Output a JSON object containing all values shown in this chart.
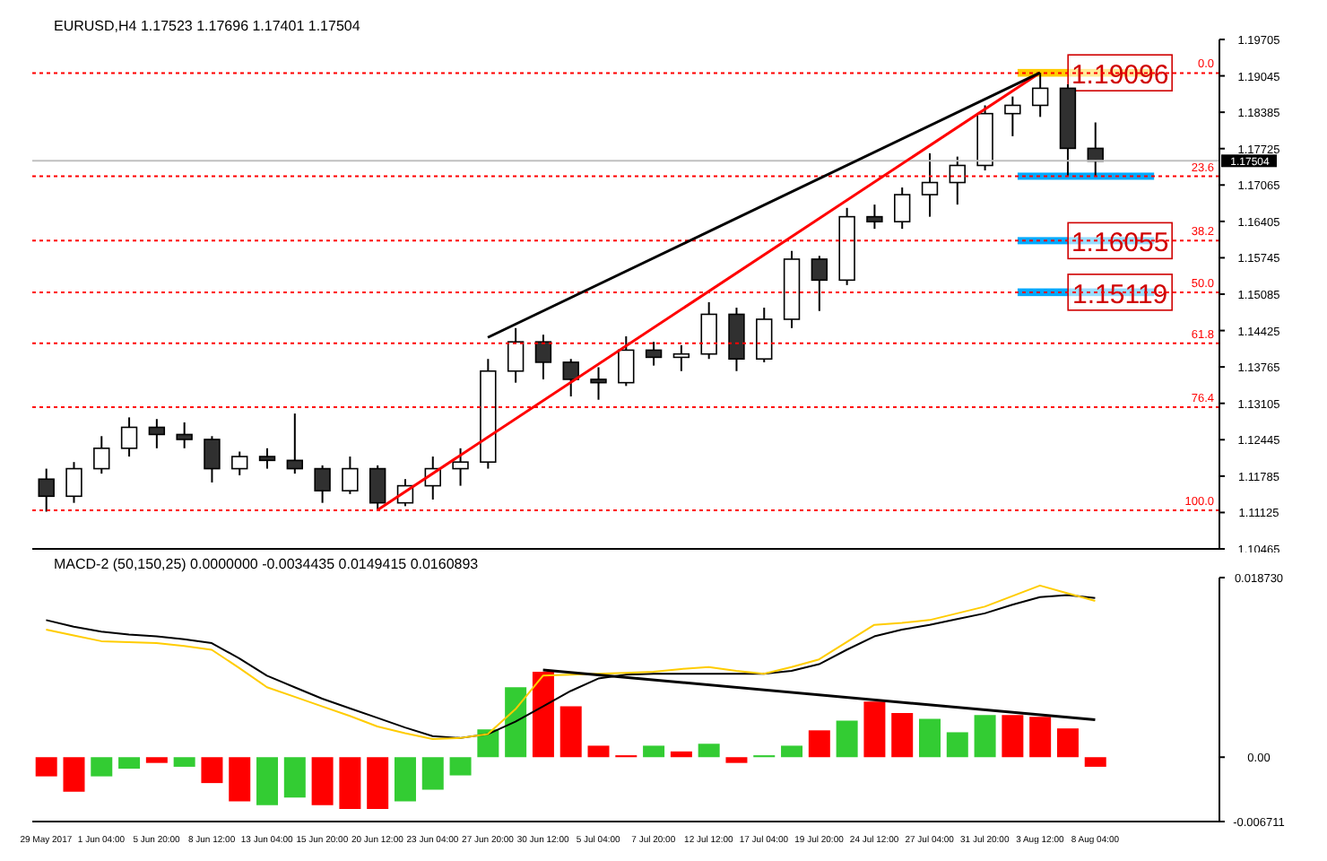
{
  "chart_data": [
    {
      "type": "candlestick",
      "title": "EURUSD,H4 1.17523 1.17696 1.17401 1.17504",
      "categories": [
        "29 May 2017",
        null,
        "1 Jun 04:00",
        null,
        "5 Jun 20:00",
        null,
        "8 Jun 12:00",
        null,
        "13 Jun 04:00",
        null,
        "15 Jun 20:00",
        null,
        "20 Jun 12:00",
        null,
        "23 Jun 04:00",
        null,
        "27 Jun 20:00",
        null,
        "30 Jun 12:00",
        null,
        "5 Jul 04:00",
        null,
        "7 Jul 20:00",
        null,
        "12 Jul 12:00",
        null,
        "17 Jul 04:00",
        null,
        "19 Jul 20:00",
        null,
        "24 Jul 12:00",
        null,
        "27 Jul 04:00",
        null,
        "31 Jul 20:00",
        null,
        "3 Aug 12:00",
        null,
        "8 Aug 04:00",
        null,
        null,
        null,
        null
      ],
      "ohlc": [
        [
          1.1173,
          1.1192,
          1.1114,
          1.1142
        ],
        [
          1.1142,
          1.1204,
          1.113,
          1.1192
        ],
        [
          1.1192,
          1.1251,
          1.1183,
          1.1229
        ],
        [
          1.1229,
          1.1285,
          1.1214,
          1.1267
        ],
        [
          1.1267,
          1.1282,
          1.1229,
          1.1254
        ],
        [
          1.1254,
          1.1276,
          1.1229,
          1.1245
        ],
        [
          1.1245,
          1.1251,
          1.1167,
          1.1192
        ],
        [
          1.1192,
          1.1223,
          1.118,
          1.1214
        ],
        [
          1.1214,
          1.1229,
          1.1192,
          1.1207
        ],
        [
          1.1207,
          1.1292,
          1.1183,
          1.1192
        ],
        [
          1.1192,
          1.1198,
          1.113,
          1.1152
        ],
        [
          1.1152,
          1.1214,
          1.1146,
          1.1192
        ],
        [
          1.1192,
          1.1198,
          1.1117,
          1.113
        ],
        [
          1.113,
          1.1173,
          1.1124,
          1.1161
        ],
        [
          1.1161,
          1.1214,
          1.1136,
          1.1192
        ],
        [
          1.1192,
          1.1229,
          1.1161,
          1.1204
        ],
        [
          1.1204,
          1.1391,
          1.1192,
          1.1369
        ],
        [
          1.1369,
          1.1447,
          1.1348,
          1.1422
        ],
        [
          1.1422,
          1.1435,
          1.1354,
          1.1385
        ],
        [
          1.1385,
          1.1391,
          1.1323,
          1.1354
        ],
        [
          1.1354,
          1.1376,
          1.1317,
          1.1348
        ],
        [
          1.1348,
          1.1432,
          1.1342,
          1.1407
        ],
        [
          1.1407,
          1.1422,
          1.1379,
          1.1394
        ],
        [
          1.1394,
          1.1416,
          1.1369,
          1.14
        ],
        [
          1.14,
          1.1494,
          1.1391,
          1.1472
        ],
        [
          1.1472,
          1.1484,
          1.1369,
          1.1391
        ],
        [
          1.1391,
          1.1484,
          1.1385,
          1.1463
        ],
        [
          1.1463,
          1.1587,
          1.1447,
          1.1572
        ],
        [
          1.1572,
          1.1578,
          1.1478,
          1.1534
        ],
        [
          1.1534,
          1.1665,
          1.1525,
          1.1649
        ],
        [
          1.1649,
          1.1671,
          1.1627,
          1.164
        ],
        [
          1.164,
          1.1702,
          1.1627,
          1.1689
        ],
        [
          1.1689,
          1.1764,
          1.1649,
          1.1711
        ],
        [
          1.1711,
          1.1758,
          1.1671,
          1.1742
        ],
        [
          1.1742,
          1.1851,
          1.1733,
          1.1836
        ],
        [
          1.1836,
          1.1867,
          1.1795,
          1.1851
        ],
        [
          1.1851,
          1.191,
          1.183,
          1.1882
        ],
        [
          1.1882,
          1.1889,
          1.1722,
          1.1773
        ],
        [
          1.1773,
          1.182,
          1.1722,
          1.175
        ],
        null,
        null,
        null,
        null
      ],
      "series": [
        {
          "type": "line",
          "color": "#ff0000",
          "x": [
            "20 Jun 12:00",
            "3 Aug 12:00"
          ],
          "values": [
            1.1117,
            1.191
          ]
        },
        {
          "type": "line",
          "color": "#000000",
          "x": [
            "27 Jun 20:00",
            "3 Aug 12:00"
          ],
          "values": [
            1.143,
            1.191
          ]
        }
      ],
      "ylim": [
        1.10465,
        1.19705
      ],
      "yticks": [
        1.10465,
        1.11125,
        1.11785,
        1.12445,
        1.13105,
        1.13765,
        1.14425,
        1.15085,
        1.15745,
        1.16405,
        1.17065,
        1.17725,
        1.18385,
        1.19045,
        1.19705
      ],
      "ref_lines": [
        {
          "axis": "y",
          "value": 1.19096,
          "color": "#ff0000",
          "line_style": "dotted"
        },
        {
          "axis": "y",
          "value": 1.17224,
          "color": "#ff0000",
          "line_style": "dotted"
        },
        {
          "axis": "y",
          "value": 1.16055,
          "color": "#ff0000",
          "line_style": "dotted"
        },
        {
          "axis": "y",
          "value": 1.15119,
          "color": "#ff0000",
          "line_style": "dotted"
        },
        {
          "axis": "y",
          "value": 1.14195,
          "color": "#ff0000",
          "line_style": "dotted"
        },
        {
          "axis": "y",
          "value": 1.13037,
          "color": "#ff0000",
          "line_style": "dotted"
        },
        {
          "axis": "y",
          "value": 1.11165,
          "color": "#ff0000",
          "line_style": "dotted"
        },
        {
          "axis": "y",
          "value": 1.17504,
          "label": "1.17504",
          "color": "#c0c0c0"
        }
      ],
      "bands": [
        {
          "axis": "y",
          "from": 1.1903,
          "to": 1.1917,
          "label": "1.19096",
          "color": "#ffcc00"
        },
        {
          "axis": "y",
          "from": 1.1716,
          "to": 1.1729,
          "color": "#00aaff"
        },
        {
          "axis": "y",
          "from": 1.1599,
          "to": 1.1612,
          "label": "1.16055",
          "color": "#00aaff"
        },
        {
          "axis": "y",
          "from": 1.1505,
          "to": 1.1519,
          "label": "1.15119",
          "color": "#00aaff"
        }
      ],
      "annotations": [
        {
          "text": "0.0",
          "y": 1.19096
        },
        {
          "text": "23.6",
          "y": 1.17224
        },
        {
          "text": "38.2",
          "y": 1.16055
        },
        {
          "text": "50.0",
          "y": 1.15119
        },
        {
          "text": "61.8",
          "y": 1.14195
        },
        {
          "text": "76.4",
          "y": 1.13037
        },
        {
          "text": "100.0",
          "y": 1.11165
        }
      ],
      "tick_labels": "y"
    },
    {
      "type": "bar",
      "title": "MACD-2 (50,150,25) 0.0000000 -0.0034435 0.0149415 0.0160893",
      "categories": [
        "29 May 2017",
        null,
        "1 Jun 04:00",
        null,
        "5 Jun 20:00",
        null,
        "8 Jun 12:00",
        null,
        "13 Jun 04:00",
        null,
        "15 Jun 20:00",
        null,
        "20 Jun 12:00",
        null,
        "23 Jun 04:00",
        null,
        "27 Jun 20:00",
        null,
        "30 Jun 12:00",
        null,
        "5 Jul 04:00",
        null,
        "7 Jul 20:00",
        null,
        "12 Jul 12:00",
        null,
        "17 Jul 04:00",
        null,
        "19 Jul 20:00",
        null,
        "24 Jul 12:00",
        null,
        "27 Jul 04:00",
        null,
        "31 Jul 20:00",
        null,
        "3 Aug 12:00",
        null,
        "8 Aug 04:00",
        null,
        null,
        null,
        null
      ],
      "series": [
        {
          "type": "bar",
          "values": [
            -0.002,
            -0.0036,
            -0.002,
            -0.0012,
            -0.0006,
            -0.001,
            -0.0027,
            -0.0046,
            -0.005,
            -0.0042,
            -0.005,
            -0.0054,
            -0.0054,
            -0.0046,
            -0.0034,
            -0.0019,
            0.0029,
            0.0073,
            0.0089,
            0.0053,
            0.0012,
            0.0002,
            0.0012,
            0.0006,
            0.0014,
            -0.0006,
            0.0002,
            0.0012,
            0.0028,
            0.0038,
            0.0058,
            0.0046,
            0.004,
            0.0026,
            0.0044,
            0.0044,
            0.0042,
            0.003,
            -0.001,
            null,
            null,
            null,
            null
          ],
          "colors": [
            "#ff0000",
            "#ff0000",
            "#33cc33",
            "#33cc33",
            "#ff0000",
            "#33cc33",
            "#ff0000",
            "#ff0000",
            "#33cc33",
            "#33cc33",
            "#ff0000",
            "#ff0000",
            "#ff0000",
            "#33cc33",
            "#33cc33",
            "#33cc33",
            "#33cc33",
            "#33cc33",
            "#ff0000",
            "#ff0000",
            "#ff0000",
            "#ff0000",
            "#33cc33",
            "#ff0000",
            "#33cc33",
            "#ff0000",
            "#33cc33",
            "#33cc33",
            "#ff0000",
            "#33cc33",
            "#ff0000",
            "#ff0000",
            "#33cc33",
            "#33cc33",
            "#33cc33",
            "#ff0000",
            "#ff0000",
            "#ff0000",
            "#ff0000",
            null,
            null,
            null,
            null
          ]
        },
        {
          "type": "line",
          "color": "#000000",
          "values": [
            0.0143,
            0.0136,
            0.0131,
            0.0128,
            0.0126,
            0.0123,
            0.0119,
            0.0103,
            0.0085,
            0.0073,
            0.0061,
            0.0051,
            0.0041,
            0.0031,
            0.0022,
            0.002,
            0.0024,
            0.0037,
            0.0053,
            0.0069,
            0.0082,
            0.0086,
            0.0087,
            0.0087,
            0.0087,
            0.0087,
            0.0087,
            0.009,
            0.0097,
            0.0112,
            0.0126,
            0.0133,
            0.0138,
            0.0144,
            0.015,
            0.0159,
            0.0167,
            0.0169,
            0.0166,
            null,
            null,
            null,
            null
          ]
        },
        {
          "type": "line",
          "color": "#ffcc00",
          "values": [
            0.0133,
            0.0127,
            0.0121,
            0.012,
            0.0119,
            0.0116,
            0.0112,
            0.0093,
            0.0073,
            0.0063,
            0.0053,
            0.0043,
            0.0032,
            0.0025,
            0.0019,
            0.002,
            0.0024,
            0.005,
            0.0085,
            0.0086,
            0.0087,
            0.0088,
            0.0089,
            0.0092,
            0.0094,
            0.009,
            0.0087,
            0.0094,
            0.0102,
            0.012,
            0.0138,
            0.014,
            0.0143,
            0.015,
            0.0157,
            0.0168,
            0.0179,
            0.0171,
            0.0163,
            null,
            null,
            null,
            null
          ]
        },
        {
          "type": "line",
          "color": "#000000",
          "x": [
            "30 Jun 12:00",
            "8 Aug 04:00"
          ],
          "values": [
            0.0091,
            0.0039
          ]
        }
      ],
      "ylim": [
        -0.006711,
        0.01873
      ],
      "yticks": [
        {
          "value": -0.006711,
          "label": "-0.006711"
        },
        {
          "value": 0,
          "label": "0.00"
        },
        {
          "value": 0.01873,
          "label": "0.018730"
        }
      ]
    }
  ]
}
